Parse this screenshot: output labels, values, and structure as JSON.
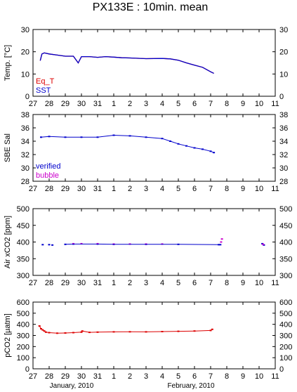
{
  "title": "PX133E : 10min. mean",
  "xaxis": {
    "tick_labels": [
      "27",
      "28",
      "29",
      "30",
      "31",
      "1",
      "2",
      "3",
      "4",
      "5",
      "6",
      "7",
      "8",
      "9",
      "10",
      "11"
    ],
    "month_labels": [
      "January, 2010",
      "February, 2010"
    ]
  },
  "colors": {
    "blue": "#0000cc",
    "red": "#dd0000",
    "magenta": "#cc00cc",
    "black": "#000000"
  },
  "chart_data": [
    {
      "type": "line",
      "ylabel": "Temp. [°C]",
      "ylim": [
        0,
        30
      ],
      "yticks": [
        0,
        10,
        20,
        30
      ],
      "ytick_labels": [
        "0",
        "10",
        "20",
        "30"
      ],
      "xlim": [
        27,
        42
      ],
      "legend": [
        "Eq_T",
        "SST"
      ],
      "legend_placement": "bottom-left",
      "series": [
        {
          "name": "Eq_T",
          "color": "#dd0000",
          "points": [
            [
              27.45,
              16
            ],
            [
              27.55,
              19
            ],
            [
              27.7,
              19.5
            ],
            [
              28,
              19
            ],
            [
              28.5,
              18.5
            ],
            [
              29,
              18
            ],
            [
              29.5,
              18
            ],
            [
              29.8,
              15
            ],
            [
              30,
              17.8
            ],
            [
              30.5,
              17.8
            ],
            [
              31,
              17.5
            ],
            [
              31.5,
              17.8
            ],
            [
              32,
              17.6
            ],
            [
              32.5,
              17.3
            ],
            [
              33,
              17.2
            ],
            [
              34,
              16.9
            ],
            [
              35,
              17
            ],
            [
              35.5,
              16.8
            ],
            [
              36,
              16.2
            ],
            [
              36.5,
              15
            ],
            [
              37,
              14
            ],
            [
              37.5,
              13
            ],
            [
              38,
              11
            ],
            [
              38.2,
              10.3
            ]
          ]
        },
        {
          "name": "SST",
          "color": "#0000cc",
          "points": [
            [
              27.45,
              16
            ],
            [
              27.55,
              19
            ],
            [
              27.7,
              19.5
            ],
            [
              28,
              19
            ],
            [
              28.5,
              18.5
            ],
            [
              29,
              18
            ],
            [
              29.5,
              18
            ],
            [
              29.8,
              15
            ],
            [
              30,
              17.8
            ],
            [
              30.5,
              17.8
            ],
            [
              31,
              17.5
            ],
            [
              31.5,
              17.8
            ],
            [
              32,
              17.6
            ],
            [
              32.5,
              17.3
            ],
            [
              33,
              17.2
            ],
            [
              34,
              16.9
            ],
            [
              35,
              17
            ],
            [
              35.5,
              16.8
            ],
            [
              36,
              16.2
            ],
            [
              36.5,
              15
            ],
            [
              37,
              14
            ],
            [
              37.5,
              13
            ],
            [
              38,
              11
            ],
            [
              38.2,
              10.3
            ]
          ]
        }
      ]
    },
    {
      "type": "scatter",
      "ylabel": "SBE Sal",
      "ylim": [
        28,
        38
      ],
      "yticks": [
        28,
        30,
        32,
        34,
        36,
        38
      ],
      "ytick_labels": [
        "28",
        "30",
        "32",
        "34",
        "36",
        "38"
      ],
      "xlim": [
        27,
        42
      ],
      "legend": [
        "verified",
        "bubble"
      ],
      "legend_placement": "bottom-left",
      "series": [
        {
          "name": "verified",
          "color": "#0000cc",
          "points": [
            [
              27.5,
              34.6
            ],
            [
              28,
              34.7
            ],
            [
              29,
              34.6
            ],
            [
              30,
              34.6
            ],
            [
              31,
              34.6
            ],
            [
              32,
              34.9
            ],
            [
              33,
              34.8
            ],
            [
              34,
              34.6
            ],
            [
              35,
              34.4
            ],
            [
              35.5,
              34.0
            ],
            [
              36,
              33.6
            ],
            [
              36.5,
              33.3
            ],
            [
              37,
              33.0
            ],
            [
              37.5,
              32.8
            ],
            [
              38,
              32.5
            ],
            [
              38.2,
              32.3
            ]
          ]
        },
        {
          "name": "bubble",
          "color": "#cc00cc",
          "points": []
        }
      ]
    },
    {
      "type": "scatter",
      "ylabel": "Air xCO2 [ppm]",
      "ylim": [
        300,
        500
      ],
      "yticks": [
        300,
        350,
        400,
        450,
        500
      ],
      "ytick_labels": [
        "300",
        "350",
        "400",
        "450",
        "500"
      ],
      "xlim": [
        27,
        42
      ],
      "series": [
        {
          "name": "",
          "color": "#0000cc",
          "points": [
            [
              27.6,
              392
            ],
            [
              28,
              392
            ],
            [
              28.2,
              391
            ],
            [
              29,
              393
            ],
            [
              29.5,
              394
            ],
            [
              31,
              394
            ],
            [
              32,
              393
            ],
            [
              34,
              393
            ],
            [
              36,
              393
            ],
            [
              38.5,
              392
            ],
            [
              38.6,
              392
            ],
            [
              41.2,
              395
            ],
            [
              41.3,
              391
            ]
          ]
        },
        {
          "name": "",
          "color": "#cc00cc",
          "points": [
            [
              29.5,
              395
            ],
            [
              30,
              395
            ],
            [
              31,
              395
            ],
            [
              32,
              394
            ],
            [
              33,
              394
            ],
            [
              34,
              394
            ],
            [
              35,
              394
            ],
            [
              38.65,
              400
            ],
            [
              38.7,
              409
            ],
            [
              41.25,
              393
            ]
          ]
        }
      ]
    },
    {
      "type": "scatter",
      "ylabel": "pCO2 [µatm]",
      "ylim": [
        0,
        600
      ],
      "yticks": [
        0,
        100,
        200,
        300,
        400,
        500,
        600
      ],
      "ytick_labels": [
        "0",
        "100",
        "200",
        "300",
        "400",
        "500",
        "600"
      ],
      "xlim": [
        27,
        42
      ],
      "series": [
        {
          "name": "",
          "color": "#dd0000",
          "points": [
            [
              27.4,
              385
            ],
            [
              27.5,
              360
            ],
            [
              27.6,
              350
            ],
            [
              27.7,
              340
            ],
            [
              27.8,
              330
            ],
            [
              28,
              325
            ],
            [
              28.5,
              320
            ],
            [
              29,
              322
            ],
            [
              29.5,
              325
            ],
            [
              30,
              330
            ],
            [
              30.05,
              340
            ],
            [
              30.5,
              328
            ],
            [
              31,
              330
            ],
            [
              32,
              332
            ],
            [
              33,
              333
            ],
            [
              34,
              332
            ],
            [
              35,
              335
            ],
            [
              36,
              337
            ],
            [
              37,
              340
            ],
            [
              38,
              345
            ],
            [
              38.1,
              355
            ]
          ]
        }
      ]
    }
  ]
}
